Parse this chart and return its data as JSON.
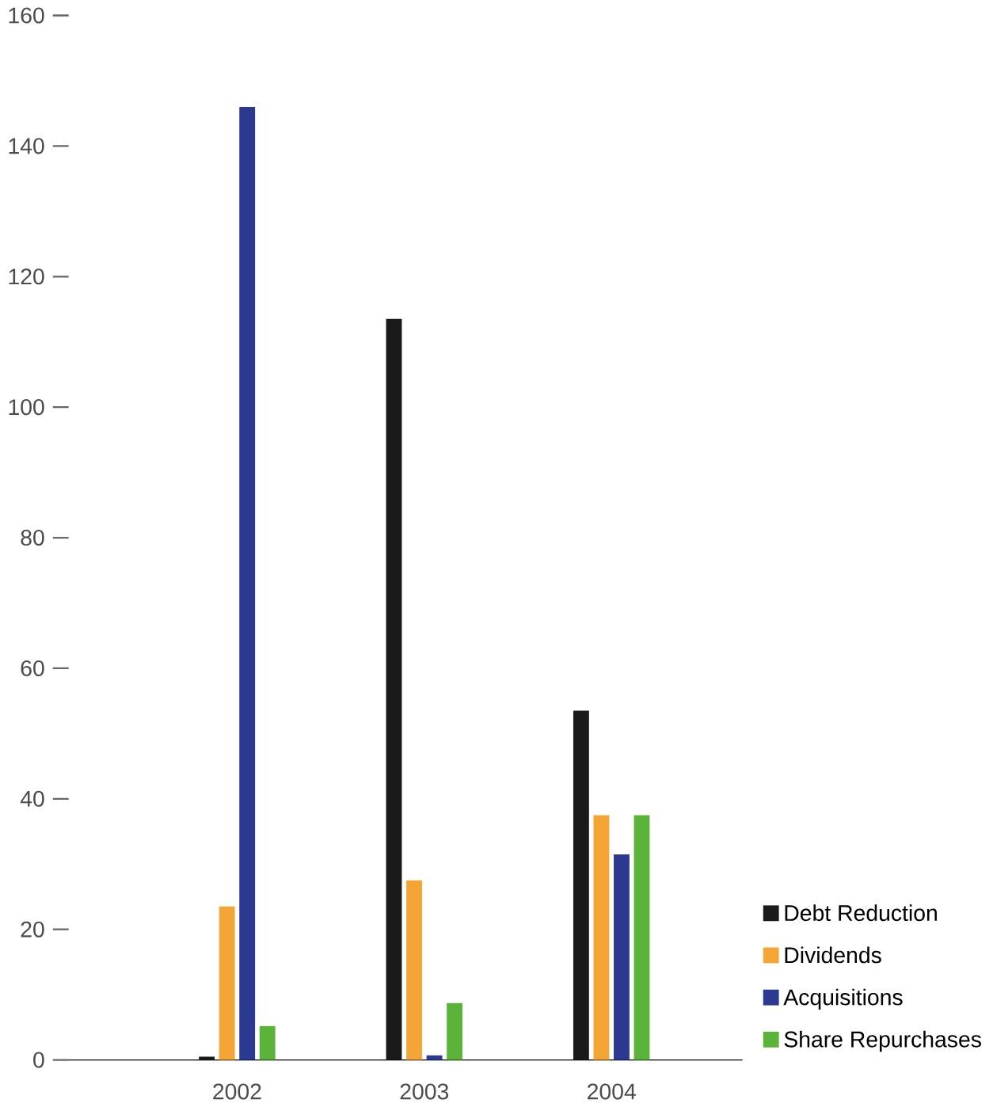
{
  "chart_data": {
    "type": "bar",
    "categories": [
      "2002",
      "2003",
      "2004"
    ],
    "series": [
      {
        "name": "Debt Reduction",
        "color": "#1a1a1a",
        "values": [
          0.5,
          113.5,
          53.5
        ]
      },
      {
        "name": "Dividends",
        "color": "#f4a535",
        "values": [
          23.5,
          27.5,
          37.5
        ]
      },
      {
        "name": "Acquisitions",
        "color": "#2b3990",
        "values": [
          146,
          0.7,
          31.5
        ]
      },
      {
        "name": "Share Repurchases",
        "color": "#5cb33a",
        "values": [
          5.2,
          8.7,
          37.5
        ]
      }
    ],
    "ylim": [
      0,
      160
    ],
    "yticks": [
      0,
      20,
      40,
      60,
      80,
      100,
      120,
      140,
      160
    ],
    "legend": "bottom right"
  }
}
